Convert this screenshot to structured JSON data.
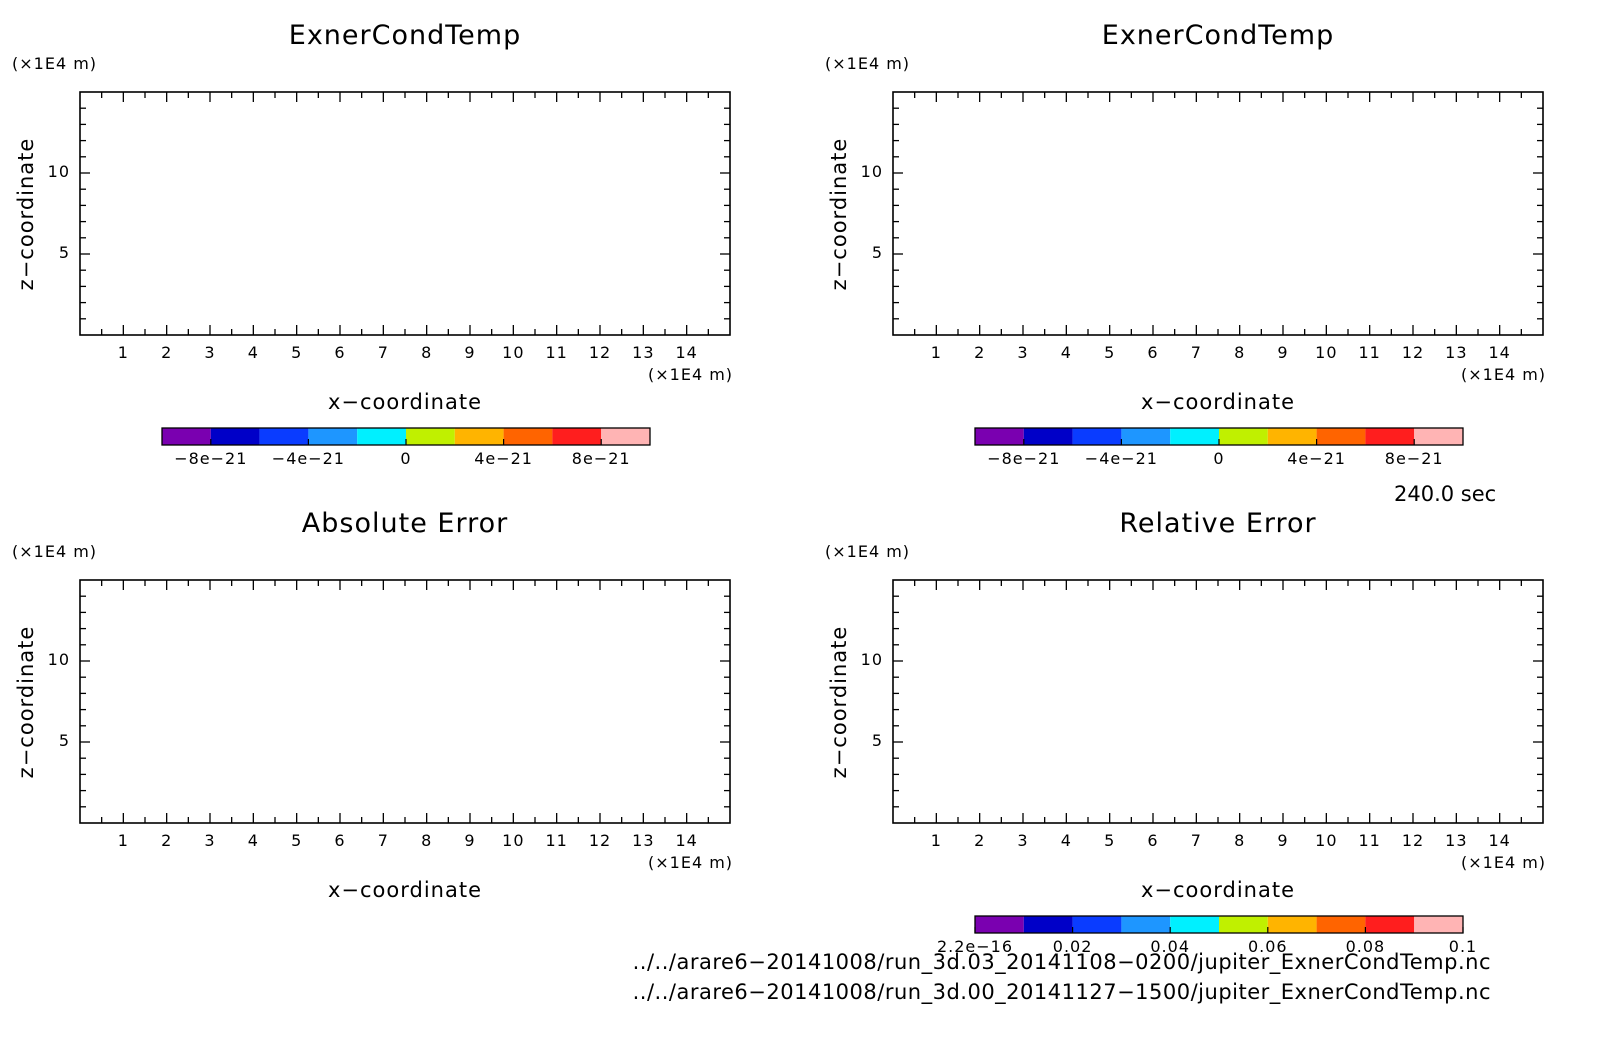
{
  "chart_data": [
    {
      "type": "heatmap",
      "title": "ExnerCondTemp",
      "xlabel": "x−coordinate",
      "ylabel": "z−coordinate",
      "x_unit": "(×1E4 m)",
      "y_unit": "(×1E4 m)",
      "xlim": [
        0,
        15
      ],
      "ylim": [
        0,
        15
      ],
      "x_ticks": [
        "1",
        "2",
        "3",
        "4",
        "5",
        "6",
        "7",
        "8",
        "9",
        "10",
        "11",
        "12",
        "13",
        "14"
      ],
      "y_ticks": [
        "5",
        "10"
      ],
      "colorbar": {
        "colors": [
          "#7a00b0",
          "#0000c8",
          "#0a3cff",
          "#1e96ff",
          "#00f0ff",
          "#c0f000",
          "#ffb400",
          "#ff6400",
          "#ff1e1e",
          "#ffb4b4"
        ],
        "tick_labels": [
          "−8e−21",
          "−4e−21",
          "0",
          "4e−21",
          "8e−21"
        ],
        "range": [
          -1e-20,
          1e-20
        ]
      },
      "values": []
    },
    {
      "type": "heatmap",
      "title": "ExnerCondTemp",
      "xlabel": "x−coordinate",
      "ylabel": "z−coordinate",
      "x_unit": "(×1E4 m)",
      "y_unit": "(×1E4 m)",
      "xlim": [
        0,
        15
      ],
      "ylim": [
        0,
        15
      ],
      "x_ticks": [
        "1",
        "2",
        "3",
        "4",
        "5",
        "6",
        "7",
        "8",
        "9",
        "10",
        "11",
        "12",
        "13",
        "14"
      ],
      "y_ticks": [
        "5",
        "10"
      ],
      "colorbar": {
        "colors": [
          "#7a00b0",
          "#0000c8",
          "#0a3cff",
          "#1e96ff",
          "#00f0ff",
          "#c0f000",
          "#ffb400",
          "#ff6400",
          "#ff1e1e",
          "#ffb4b4"
        ],
        "tick_labels": [
          "−8e−21",
          "−4e−21",
          "0",
          "4e−21",
          "8e−21"
        ],
        "range": [
          -1e-20,
          1e-20
        ]
      },
      "values": []
    },
    {
      "type": "heatmap",
      "title": "Absolute Error",
      "xlabel": "x−coordinate",
      "ylabel": "z−coordinate",
      "x_unit": "(×1E4 m)",
      "y_unit": "(×1E4 m)",
      "xlim": [
        0,
        15
      ],
      "ylim": [
        0,
        15
      ],
      "x_ticks": [
        "1",
        "2",
        "3",
        "4",
        "5",
        "6",
        "7",
        "8",
        "9",
        "10",
        "11",
        "12",
        "13",
        "14"
      ],
      "y_ticks": [
        "5",
        "10"
      ],
      "values": []
    },
    {
      "type": "heatmap",
      "title": "Relative Error",
      "xlabel": "x−coordinate",
      "ylabel": "z−coordinate",
      "x_unit": "(×1E4 m)",
      "y_unit": "(×1E4 m)",
      "xlim": [
        0,
        15
      ],
      "ylim": [
        0,
        15
      ],
      "x_ticks": [
        "1",
        "2",
        "3",
        "4",
        "5",
        "6",
        "7",
        "8",
        "9",
        "10",
        "11",
        "12",
        "13",
        "14"
      ],
      "y_ticks": [
        "5",
        "10"
      ],
      "colorbar": {
        "colors": [
          "#7a00b0",
          "#0000c8",
          "#0a3cff",
          "#1e96ff",
          "#00f0ff",
          "#c0f000",
          "#ffb400",
          "#ff6400",
          "#ff1e1e",
          "#ffb4b4"
        ],
        "tick_labels": [
          "2.2e−16",
          "0.02",
          "0.04",
          "0.06",
          "0.08",
          "0.1"
        ],
        "range": [
          2.2e-16,
          0.1
        ]
      },
      "values": []
    }
  ],
  "time_label": "240.0 sec",
  "files": [
    "../../arare6−20141008/run_3d.03_20141108−0200/jupiter_ExnerCondTemp.nc",
    "../../arare6−20141008/run_3d.00_20141127−1500/jupiter_ExnerCondTemp.nc"
  ]
}
